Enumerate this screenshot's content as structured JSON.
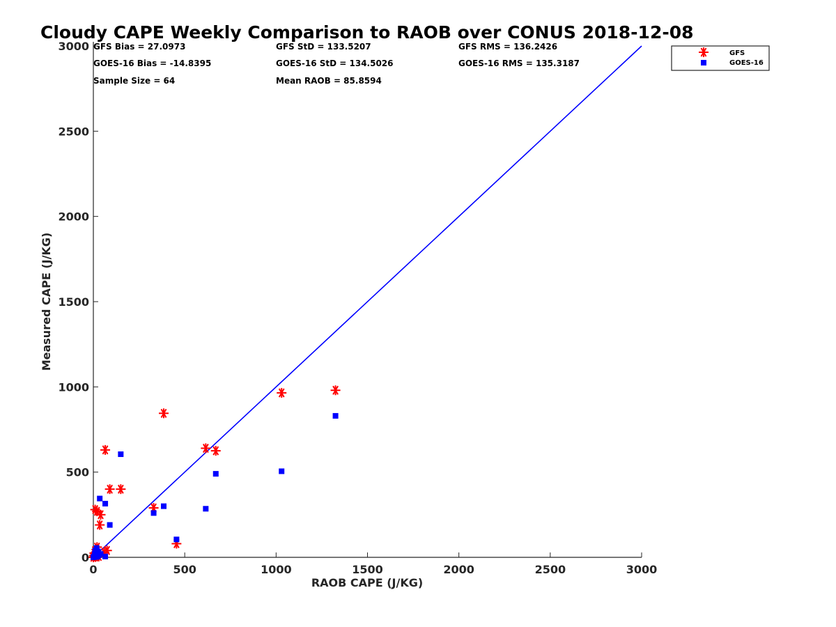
{
  "chart_data": {
    "type": "scatter",
    "title": "Cloudy CAPE Weekly Comparison to RAOB over CONUS 2018-12-08",
    "xlabel": "RAOB CAPE (J/KG)",
    "ylabel": "Measured CAPE (J/KG)",
    "xlim": [
      0,
      3000
    ],
    "ylim": [
      0,
      3000
    ],
    "xticks": [
      0,
      500,
      1000,
      1500,
      2000,
      2500,
      3000
    ],
    "yticks": [
      0,
      500,
      1000,
      1500,
      2000,
      2500,
      3000
    ],
    "legend_position": "top-right (outside plot)",
    "stats": [
      [
        "GFS Bias = 27.0973",
        "GFS StD = 133.5207",
        "GFS RMS = 136.2426"
      ],
      [
        "GOES-16 Bias = -14.8395",
        "GOES-16 StD = 134.5026",
        "GOES-16 RMS = 135.3187"
      ],
      [
        "Sample Size = 64",
        "Mean RAOB = 85.8594",
        ""
      ]
    ],
    "reference_line": {
      "x": [
        0,
        3000
      ],
      "y": [
        0,
        3000
      ],
      "color": "#0000ff"
    },
    "series": [
      {
        "name": "GFS",
        "marker": "asterisk",
        "color": "#ff0000",
        "points": [
          [
            0,
            0
          ],
          [
            3,
            10
          ],
          [
            5,
            25
          ],
          [
            8,
            5
          ],
          [
            10,
            15
          ],
          [
            12,
            2
          ],
          [
            15,
            30
          ],
          [
            18,
            8
          ],
          [
            20,
            60
          ],
          [
            25,
            20
          ],
          [
            30,
            5
          ],
          [
            40,
            250
          ],
          [
            35,
            190
          ],
          [
            10,
            280
          ],
          [
            20,
            270
          ],
          [
            65,
            630
          ],
          [
            60,
            30
          ],
          [
            75,
            40
          ],
          [
            90,
            400
          ],
          [
            150,
            400
          ],
          [
            330,
            290
          ],
          [
            385,
            845
          ],
          [
            455,
            80
          ],
          [
            615,
            640
          ],
          [
            670,
            625
          ],
          [
            1030,
            965
          ],
          [
            1325,
            980
          ]
        ]
      },
      {
        "name": "GOES-16",
        "marker": "square",
        "color": "#0000ff",
        "points": [
          [
            0,
            0
          ],
          [
            5,
            5
          ],
          [
            8,
            20
          ],
          [
            10,
            40
          ],
          [
            12,
            10
          ],
          [
            15,
            2
          ],
          [
            18,
            55
          ],
          [
            20,
            25
          ],
          [
            22,
            5
          ],
          [
            25,
            35
          ],
          [
            30,
            12
          ],
          [
            35,
            345
          ],
          [
            40,
            20
          ],
          [
            65,
            315
          ],
          [
            65,
            5
          ],
          [
            90,
            190
          ],
          [
            150,
            605
          ],
          [
            330,
            260
          ],
          [
            385,
            300
          ],
          [
            455,
            105
          ],
          [
            615,
            285
          ],
          [
            670,
            490
          ],
          [
            1030,
            505
          ],
          [
            1325,
            830
          ]
        ]
      }
    ]
  }
}
